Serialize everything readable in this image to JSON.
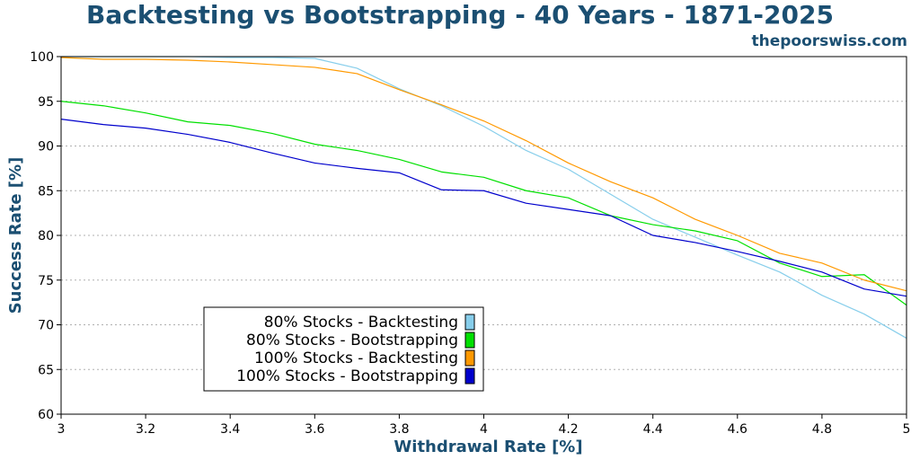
{
  "chart_data": {
    "type": "line",
    "title": "Backtesting vs Bootstrapping - 40 Years - 1871-2025",
    "watermark": "thepoorswiss.com",
    "xlabel": "Withdrawal Rate [%]",
    "ylabel": "Success Rate [%]",
    "xlim": [
      3,
      5
    ],
    "ylim": [
      60,
      100
    ],
    "x_ticks": [
      "3",
      "3.2",
      "3.4",
      "3.6",
      "3.8",
      "4",
      "4.2",
      "4.4",
      "4.6",
      "4.8",
      "5"
    ],
    "y_ticks": [
      "60",
      "65",
      "70",
      "75",
      "80",
      "85",
      "90",
      "95",
      "100"
    ],
    "grid": "horizontal dotted",
    "legend_position": "lower-left",
    "series": [
      {
        "name": "80% Stocks - Backtesting",
        "color": "#87ceeb",
        "points": [
          [
            3.0,
            100
          ],
          [
            3.1,
            100
          ],
          [
            3.2,
            100
          ],
          [
            3.3,
            100
          ],
          [
            3.4,
            99.9
          ],
          [
            3.5,
            99.9
          ],
          [
            3.6,
            99.8
          ],
          [
            3.7,
            98.7
          ],
          [
            3.8,
            96.4
          ],
          [
            3.9,
            94.5
          ],
          [
            4.0,
            92.2
          ],
          [
            4.1,
            89.5
          ],
          [
            4.2,
            87.4
          ],
          [
            4.3,
            84.6
          ],
          [
            4.4,
            81.8
          ],
          [
            4.5,
            79.8
          ],
          [
            4.6,
            77.8
          ],
          [
            4.7,
            75.9
          ],
          [
            4.8,
            73.3
          ],
          [
            4.9,
            71.2
          ],
          [
            5.0,
            68.5
          ]
        ]
      },
      {
        "name": "80% Stocks - Bootstrapping",
        "color": "#00e000",
        "points": [
          [
            3.0,
            95.0
          ],
          [
            3.1,
            94.5
          ],
          [
            3.2,
            93.7
          ],
          [
            3.3,
            92.7
          ],
          [
            3.4,
            92.3
          ],
          [
            3.5,
            91.4
          ],
          [
            3.6,
            90.2
          ],
          [
            3.7,
            89.5
          ],
          [
            3.8,
            88.5
          ],
          [
            3.9,
            87.1
          ],
          [
            4.0,
            86.5
          ],
          [
            4.1,
            85.0
          ],
          [
            4.2,
            84.2
          ],
          [
            4.3,
            82.2
          ],
          [
            4.4,
            81.2
          ],
          [
            4.5,
            80.5
          ],
          [
            4.6,
            79.4
          ],
          [
            4.7,
            76.9
          ],
          [
            4.8,
            75.4
          ],
          [
            4.9,
            75.6
          ],
          [
            5.0,
            72.2
          ]
        ]
      },
      {
        "name": "100% Stocks - Backtesting",
        "color": "#ff9900",
        "points": [
          [
            3.0,
            99.9
          ],
          [
            3.1,
            99.7
          ],
          [
            3.2,
            99.7
          ],
          [
            3.3,
            99.6
          ],
          [
            3.4,
            99.4
          ],
          [
            3.5,
            99.1
          ],
          [
            3.6,
            98.8
          ],
          [
            3.7,
            98.1
          ],
          [
            3.8,
            96.3
          ],
          [
            3.9,
            94.6
          ],
          [
            4.0,
            92.8
          ],
          [
            4.1,
            90.6
          ],
          [
            4.2,
            88.1
          ],
          [
            4.3,
            86.0
          ],
          [
            4.4,
            84.2
          ],
          [
            4.5,
            81.8
          ],
          [
            4.6,
            80.0
          ],
          [
            4.7,
            78.0
          ],
          [
            4.8,
            76.9
          ],
          [
            4.9,
            75.0
          ],
          [
            5.0,
            73.8
          ]
        ]
      },
      {
        "name": "100% Stocks - Bootstrapping",
        "color": "#0000cc",
        "points": [
          [
            3.0,
            93.0
          ],
          [
            3.1,
            92.4
          ],
          [
            3.2,
            92.0
          ],
          [
            3.3,
            91.3
          ],
          [
            3.4,
            90.4
          ],
          [
            3.5,
            89.2
          ],
          [
            3.6,
            88.1
          ],
          [
            3.7,
            87.5
          ],
          [
            3.8,
            87.0
          ],
          [
            3.9,
            85.1
          ],
          [
            4.0,
            85.0
          ],
          [
            4.1,
            83.6
          ],
          [
            4.2,
            82.9
          ],
          [
            4.3,
            82.2
          ],
          [
            4.4,
            80.0
          ],
          [
            4.5,
            79.2
          ],
          [
            4.6,
            78.2
          ],
          [
            4.7,
            77.1
          ],
          [
            4.8,
            75.9
          ],
          [
            4.9,
            74.0
          ],
          [
            5.0,
            73.2
          ]
        ]
      }
    ]
  }
}
